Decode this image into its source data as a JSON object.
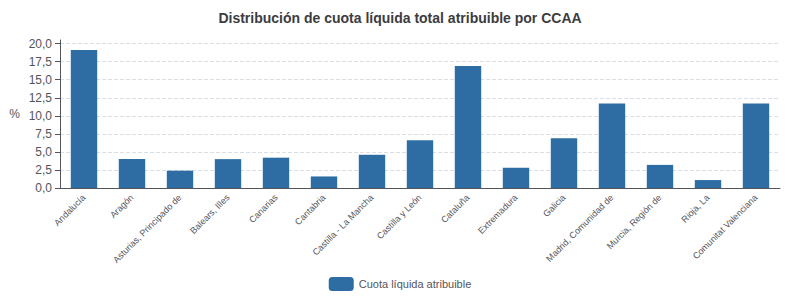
{
  "chart_data": {
    "type": "bar",
    "title": "Distribución de cuota líquida total atribuible por CCAA",
    "ylabel": "%",
    "categories": [
      "Andalucía",
      "Aragón",
      "Asturias, Principado de",
      "Balears, Illes",
      "Canarias",
      "Cantabria",
      "Castilla - La Mancha",
      "Castilla y León",
      "Cataluña",
      "Extremadura",
      "Galicia",
      "Madrid, Comunidad de",
      "Murcia, Región de",
      "Rioja, La",
      "Comunitat Valenciana"
    ],
    "series": [
      {
        "name": "Cuota líquida atribuible",
        "color": "#2E6DA4",
        "values": [
          19.1,
          4.0,
          2.4,
          4.0,
          4.2,
          1.6,
          4.6,
          6.6,
          16.9,
          2.8,
          6.9,
          11.7,
          3.2,
          1.1,
          11.7
        ]
      }
    ],
    "ylim": [
      0,
      20.5
    ],
    "yticks": [
      {
        "value": 0.0,
        "label": "0,0"
      },
      {
        "value": 2.5,
        "label": "2,5"
      },
      {
        "value": 5.0,
        "label": "5,0"
      },
      {
        "value": 7.5,
        "label": "7,5"
      },
      {
        "value": 10.0,
        "label": "10,0"
      },
      {
        "value": 12.5,
        "label": "12,5"
      },
      {
        "value": 15.0,
        "label": "15,0"
      },
      {
        "value": 17.5,
        "label": "17,5"
      },
      {
        "value": 20.0,
        "label": "20,0"
      }
    ],
    "grid": true,
    "legend": "bottom"
  }
}
